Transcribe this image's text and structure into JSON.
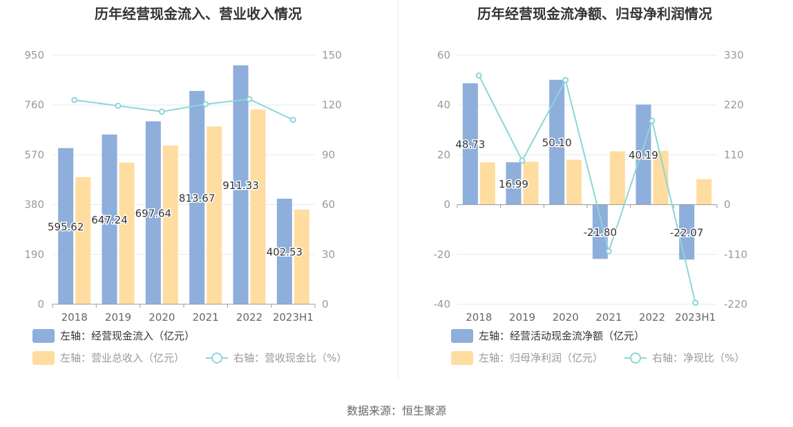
{
  "source": "数据来源：恒生聚源",
  "colors": {
    "bar_primary": "#8eaedb",
    "bar_secondary": "#ffdda0",
    "line": "#8dd5d8",
    "grid": "#e3e8f2",
    "axis": "#999999"
  },
  "chart_data": [
    {
      "type": "bar",
      "title": "历年经营现金流入、营业收入情况",
      "categories": [
        "2018",
        "2019",
        "2020",
        "2021",
        "2022",
        "2023H1"
      ],
      "left_axis": {
        "min": 0,
        "max": 950,
        "ticks": [
          "0",
          "190",
          "380",
          "570",
          "760",
          "950"
        ]
      },
      "right_axis": {
        "min": 0,
        "max": 150,
        "ticks": [
          "0",
          "30",
          "60",
          "90",
          "120",
          "150"
        ]
      },
      "series": [
        {
          "name": "左轴：经营现金流入（亿元）",
          "kind": "bar",
          "axis": "left",
          "values": [
            595.62,
            647.24,
            697.64,
            813.67,
            911.33,
            402.53
          ],
          "labels": [
            "595.62",
            "647.24",
            "697.64",
            "813.67",
            "911.33",
            "402.53"
          ]
        },
        {
          "name": "左轴：营业总收入（亿元）",
          "kind": "bar",
          "axis": "left",
          "values": [
            485,
            540,
            605,
            678,
            743,
            361
          ]
        },
        {
          "name": "右轴：营收现金比（%）",
          "kind": "line",
          "axis": "right",
          "values": [
            123,
            119.5,
            116,
            120.5,
            123.5,
            111
          ]
        }
      ]
    },
    {
      "type": "bar",
      "title": "历年经营现金流净额、归母净利润情况",
      "categories": [
        "2018",
        "2019",
        "2020",
        "2021",
        "2022",
        "2023H1"
      ],
      "left_axis": {
        "min": -40,
        "max": 60,
        "ticks": [
          "-40",
          "-20",
          "0",
          "20",
          "40",
          "60"
        ]
      },
      "right_axis": {
        "min": -220,
        "max": 330,
        "ticks": [
          "-220",
          "-110",
          "0",
          "110",
          "220",
          "330"
        ]
      },
      "series": [
        {
          "name": "左轴：经营活动现金流净额（亿元）",
          "kind": "bar",
          "axis": "left",
          "values": [
            48.73,
            16.99,
            50.1,
            -21.8,
            40.19,
            -22.07
          ],
          "labels": [
            "48.73",
            "16.99",
            "50.10",
            "-21.80",
            "40.19",
            "-22.07"
          ]
        },
        {
          "name": "左轴：归母净利润（亿元）",
          "kind": "bar",
          "axis": "left",
          "values": [
            17,
            17.2,
            18,
            21.4,
            21.6,
            10.2
          ]
        },
        {
          "name": "右轴：净现比（%）",
          "kind": "line",
          "axis": "right",
          "values": [
            285,
            97,
            275,
            -103,
            185,
            -217
          ]
        }
      ]
    }
  ]
}
